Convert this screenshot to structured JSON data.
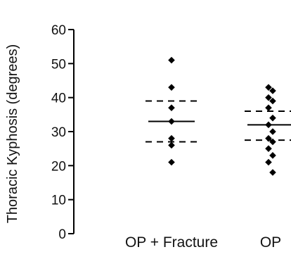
{
  "chart_data": {
    "type": "scatter",
    "title": "",
    "xlabel": "",
    "ylabel": "Thoracic Kyphosis (degrees)",
    "ylim": [
      0,
      60
    ],
    "yticks": [
      "0",
      "10",
      "20",
      "30",
      "40",
      "50",
      "60"
    ],
    "grid": false,
    "categories": [
      "OP + Fracture",
      "OP"
    ],
    "series": [
      {
        "values": [
          {
            "group": "OP + Fracture",
            "points": [
              51,
              43,
              37,
              33,
              28,
              26,
              21
            ],
            "mean": 33,
            "sd_upper": 39,
            "sd_lower": 27
          },
          {
            "group": "OP",
            "points": [
              43,
              42,
              40,
              39,
              37,
              34,
              32,
              30,
              28,
              27,
              25,
              23,
              21,
              18
            ],
            "mean": 32,
            "sd_upper": 36,
            "sd_lower": 27.5
          }
        ]
      }
    ],
    "colors": {
      "marker": "#000000",
      "axis": "#000000",
      "text": "#111111"
    }
  }
}
